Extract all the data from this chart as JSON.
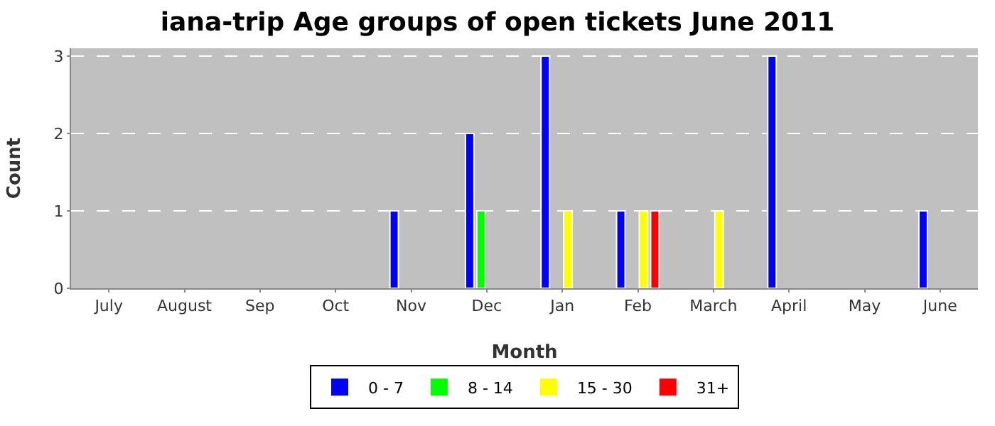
{
  "chart_data": {
    "type": "bar",
    "title": "iana-trip Age groups of open tickets June 2011",
    "xlabel": "Month",
    "ylabel": "Count",
    "categories": [
      "July",
      "August",
      "Sep",
      "Oct",
      "Nov",
      "Dec",
      "Jan",
      "Feb",
      "March",
      "April",
      "May",
      "June"
    ],
    "series": [
      {
        "name": "0 - 7",
        "color": "#0000ff",
        "values": [
          0,
          0,
          0,
          0,
          1,
          2,
          3,
          1,
          0,
          3,
          0,
          1
        ]
      },
      {
        "name": "8 - 14",
        "color": "#00ff00",
        "values": [
          0,
          0,
          0,
          0,
          0,
          1,
          0,
          0,
          0,
          0,
          0,
          0
        ]
      },
      {
        "name": "15 - 30",
        "color": "#ffff00",
        "values": [
          0,
          0,
          0,
          0,
          0,
          0,
          1,
          1,
          1,
          0,
          0,
          0
        ]
      },
      {
        "name": "31+",
        "color": "#ff0000",
        "values": [
          0,
          0,
          0,
          0,
          0,
          0,
          0,
          1,
          0,
          0,
          0,
          0
        ]
      }
    ],
    "ylim": [
      0,
      3.1
    ],
    "yticks": [
      0,
      1,
      2,
      3
    ],
    "grid": "y",
    "legend": "bottom"
  }
}
